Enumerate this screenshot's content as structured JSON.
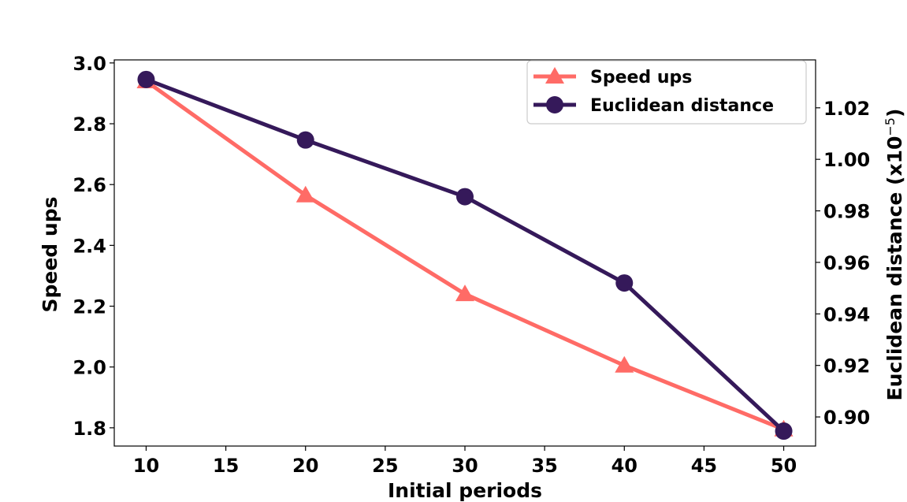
{
  "chart_data": {
    "type": "line",
    "xlabel": "Initial periods",
    "ylabel": "Speed ups",
    "y2label": "Euclidean distance (x10",
    "y2label_exponent": "−5",
    "y2label_suffix": ")",
    "x": [
      10,
      20,
      30,
      40,
      50
    ],
    "xlim": [
      8,
      52
    ],
    "ylim": [
      1.74,
      3.01
    ],
    "y2lim": [
      0.8887,
      1.0386
    ],
    "xticks": [
      10,
      15,
      20,
      25,
      30,
      35,
      40,
      45,
      50
    ],
    "yticks": [
      "1.8",
      "2.0",
      "2.2",
      "2.4",
      "2.6",
      "2.8",
      "3.0"
    ],
    "y2ticks": [
      "0.90",
      "0.92",
      "0.94",
      "0.96",
      "0.98",
      "1.00",
      "1.02"
    ],
    "series": [
      {
        "name": "Speed ups",
        "axis": "left",
        "marker": "triangle",
        "color": "#ff6b66",
        "values": [
          2.94,
          2.565,
          2.24,
          2.005,
          1.795
        ]
      },
      {
        "name": "Euclidean distance",
        "axis": "right",
        "marker": "circle",
        "color": "#35195a",
        "values": [
          1.031,
          1.0075,
          0.9855,
          0.952,
          0.8945
        ]
      }
    ],
    "legend": "top-right",
    "grid": false
  }
}
